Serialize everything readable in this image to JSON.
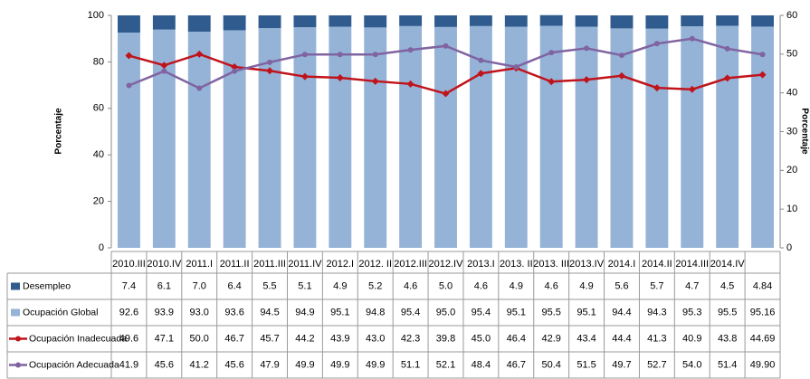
{
  "chart_data": {
    "type": "bar",
    "y_label": "Porcentaje",
    "y2_label": "Porcentaje",
    "categories": [
      "2010.III",
      "2010.IV",
      "2011.I",
      "2011.II",
      "2011.III",
      "2011.IV",
      "2012.I",
      "2012. II",
      "2012.III",
      "2012.IV",
      "2013.I",
      "2013. II",
      "2013. III",
      "2013.IV",
      "2014.I",
      "2014.II",
      "2014.III",
      "2014.IV",
      null
    ],
    "series": [
      {
        "name": "Desempleo",
        "type": "bar",
        "color": "#2f5b8f",
        "values": [
          7.4,
          6.1,
          7.0,
          6.4,
          5.5,
          5.1,
          4.9,
          5.2,
          4.6,
          5.0,
          4.6,
          4.9,
          4.6,
          4.9,
          5.6,
          5.7,
          4.7,
          4.5,
          4.84
        ],
        "value_labels": [
          "7.4",
          "6.1",
          "7.0",
          "6.4",
          "5.5",
          "5.1",
          "4.9",
          "5.2",
          "4.6",
          "5.0",
          "4.6",
          "4.9",
          "4.6",
          "4.9",
          "5.6",
          "5.7",
          "4.7",
          "4.5",
          "4.84"
        ]
      },
      {
        "name": "Ocupación Global",
        "type": "bar",
        "color": "#95b3d7",
        "values": [
          92.6,
          93.9,
          93.0,
          93.6,
          94.5,
          94.9,
          95.1,
          94.8,
          95.4,
          95.0,
          95.4,
          95.1,
          95.5,
          95.1,
          94.4,
          94.3,
          95.3,
          95.5,
          95.16
        ],
        "value_labels": [
          "92.6",
          "93.9",
          "93.0",
          "93.6",
          "94.5",
          "94.9",
          "95.1",
          "94.8",
          "95.4",
          "95.0",
          "95.4",
          "95.1",
          "95.5",
          "95.1",
          "94.4",
          "94.3",
          "95.3",
          "95.5",
          "95.16"
        ]
      },
      {
        "name": "Ocupación Inadecuada",
        "type": "line",
        "axis": "y2",
        "color": "#c0141c",
        "values": [
          49.6,
          47.1,
          50.0,
          46.7,
          45.7,
          44.2,
          43.9,
          43.0,
          42.3,
          39.8,
          45.0,
          46.4,
          42.9,
          43.4,
          44.4,
          41.3,
          40.9,
          43.8,
          44.69
        ],
        "value_labels": [
          "49.6",
          "47.1",
          "50.0",
          "46.7",
          "45.7",
          "44.2",
          "43.9",
          "43.0",
          "42.3",
          "39.8",
          "45.0",
          "46.4",
          "42.9",
          "43.4",
          "44.4",
          "41.3",
          "40.9",
          "43.8",
          "44.69"
        ]
      },
      {
        "name": "Ocupación Adecuada",
        "type": "line",
        "axis": "y2",
        "color": "#8064a2",
        "values": [
          41.9,
          45.6,
          41.2,
          45.6,
          47.9,
          49.9,
          49.9,
          49.9,
          51.1,
          52.1,
          48.4,
          46.7,
          50.4,
          51.5,
          49.7,
          52.7,
          54.0,
          51.4,
          49.9
        ],
        "value_labels": [
          "41.9",
          "45.6",
          "41.2",
          "45.6",
          "47.9",
          "49.9",
          "49.9",
          "49.9",
          "51.1",
          "52.1",
          "48.4",
          "46.7",
          "50.4",
          "51.5",
          "49.7",
          "52.7",
          "54.0",
          "51.4",
          "49.90"
        ]
      }
    ],
    "ylim": [
      0,
      100
    ],
    "yticks": [
      0,
      20,
      40,
      60,
      80,
      100
    ],
    "y2lim": [
      0,
      60
    ],
    "y2ticks": [
      0,
      10,
      20,
      30,
      40,
      50,
      60
    ]
  }
}
